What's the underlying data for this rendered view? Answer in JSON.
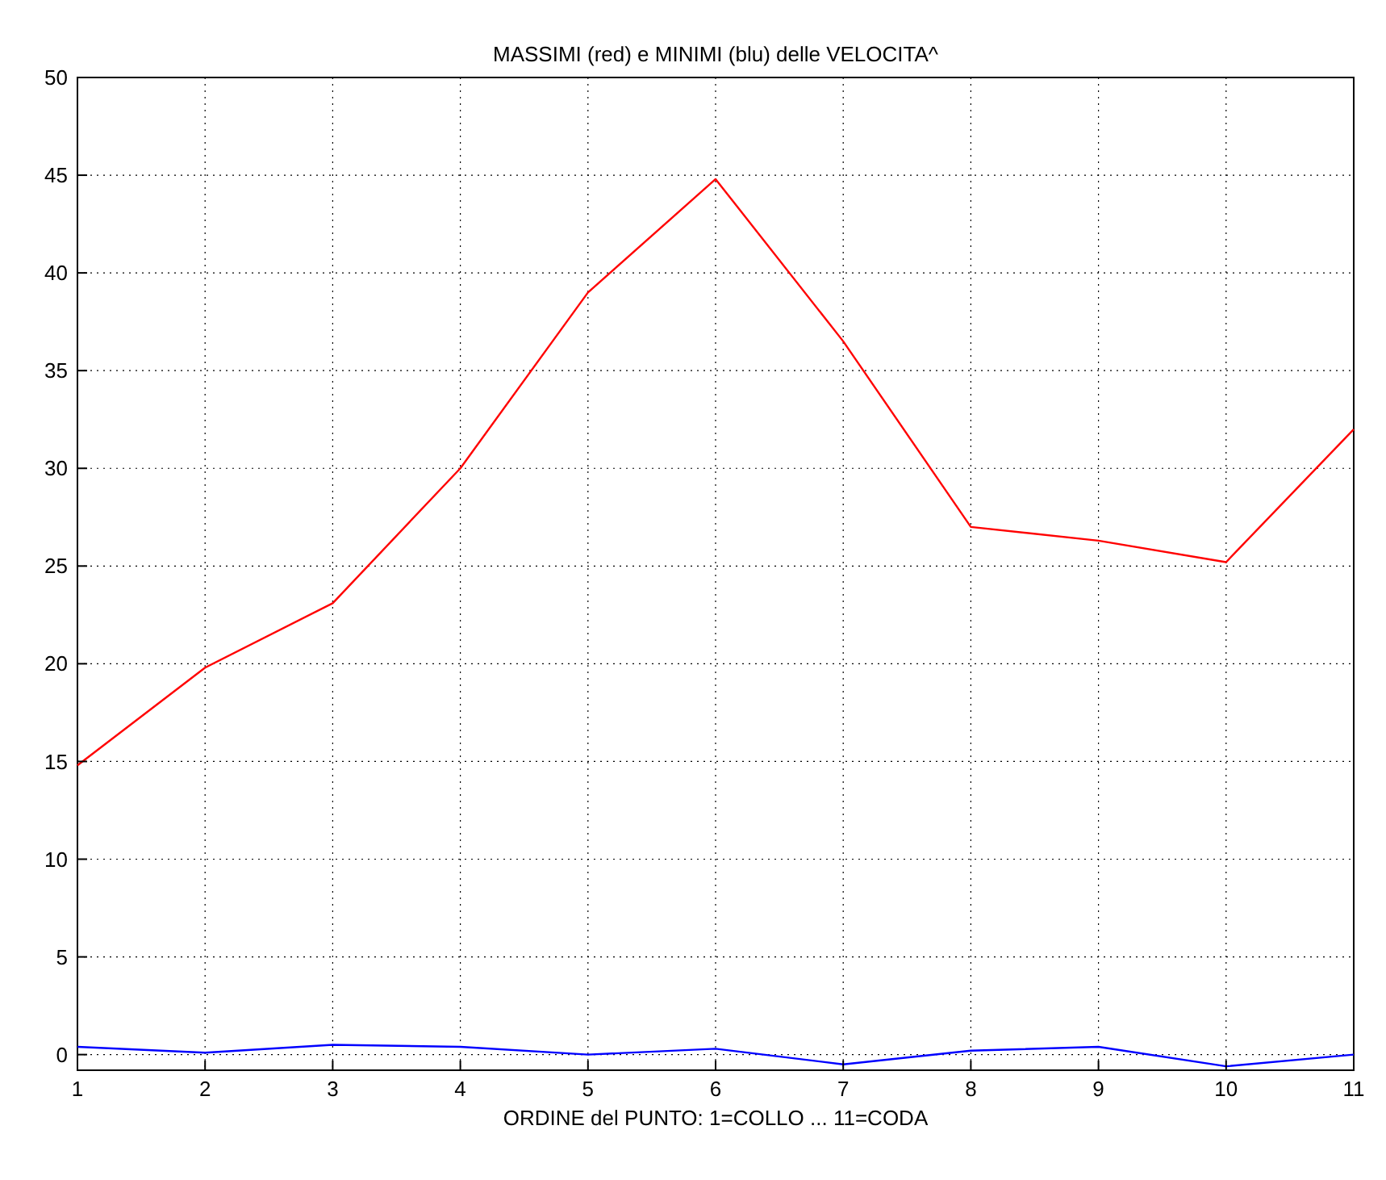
{
  "chart_data": {
    "type": "line",
    "title": "MASSIMI (red) e MINIMI (blu) delle  VELOCITA^",
    "xlabel": "ORDINE del PUNTO:   1=COLLO ... 11=CODA",
    "x": [
      1,
      2,
      3,
      4,
      5,
      6,
      7,
      8,
      9,
      10,
      11
    ],
    "series": [
      {
        "color": "#ff0000",
        "values": [
          14.8,
          19.8,
          23.1,
          30,
          39,
          44.8,
          36.5,
          27,
          26.3,
          25.2,
          32
        ]
      },
      {
        "color": "#0000ff",
        "values": [
          0.4,
          0.1,
          0.5,
          0.4,
          0,
          0.3,
          -0.5,
          0.2,
          0.4,
          -0.6,
          0
        ]
      }
    ],
    "xlim": [
      1,
      11
    ],
    "xticks": [
      1,
      2,
      3,
      4,
      5,
      6,
      7,
      8,
      9,
      10,
      11
    ],
    "ylim": [
      -0.8,
      50
    ],
    "yticks": [
      0,
      5,
      10,
      15,
      20,
      25,
      30,
      35,
      40,
      45,
      50
    ],
    "grid": true,
    "marker": "none",
    "line_style": "solid"
  }
}
